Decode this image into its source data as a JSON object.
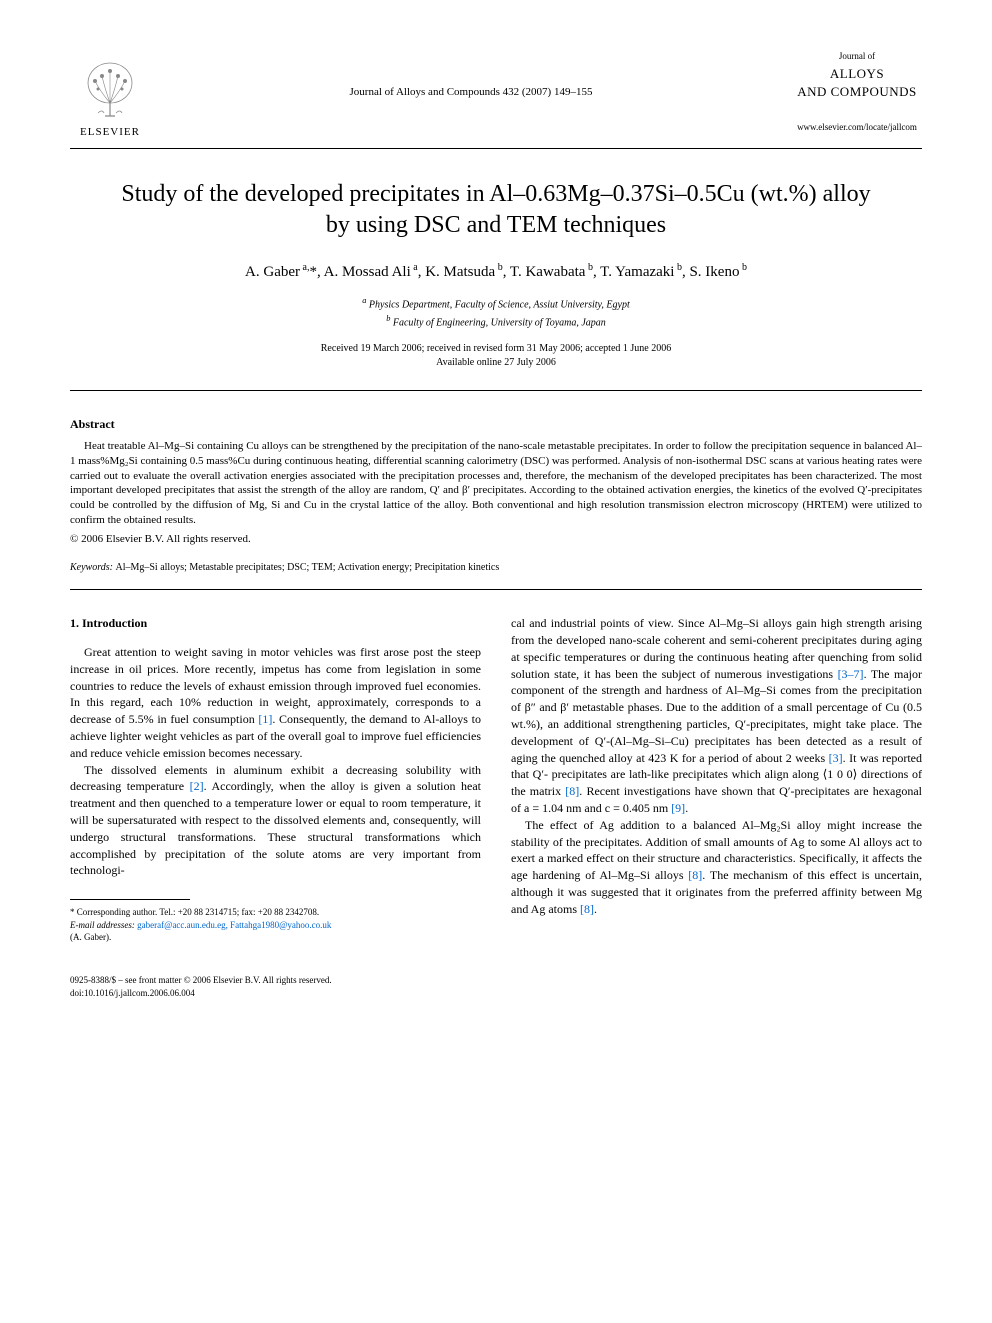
{
  "header": {
    "publisher": "ELSEVIER",
    "journal_ref": "Journal of Alloys and Compounds 432 (2007) 149–155",
    "journal_logo_pretitle": "Journal of",
    "journal_logo_title": "ALLOYS\nAND COMPOUNDS",
    "journal_url": "www.elsevier.com/locate/jallcom"
  },
  "title": "Study of the developed precipitates in Al–0.63Mg–0.37Si–0.5Cu (wt.%) alloy by using DSC and TEM techniques",
  "authors_html": "A. Gaber<sup> a,</sup>*, A. Mossad Ali<sup> a</sup>, K. Matsuda<sup> b</sup>, T. Kawabata<sup> b</sup>, T. Yamazaki<sup> b</sup>, S. Ikeno<sup> b</sup>",
  "affiliations": {
    "a": "Physics Department, Faculty of Science, Assiut University, Egypt",
    "b": "Faculty of Engineering, University of Toyama, Japan"
  },
  "dates": {
    "received": "Received 19 March 2006; received in revised form 31 May 2006; accepted 1 June 2006",
    "online": "Available online 27 July 2006"
  },
  "abstract": {
    "heading": "Abstract",
    "text": "Heat treatable Al–Mg–Si containing Cu alloys can be strengthened by the precipitation of the nano-scale metastable precipitates. In order to follow the precipitation sequence in balanced Al–1 mass%Mg₂Si containing 0.5 mass%Cu during continuous heating, differential scanning calorimetry (DSC) was performed. Analysis of non-isothermal DSC scans at various heating rates were carried out to evaluate the overall activation energies associated with the precipitation processes and, therefore, the mechanism of the developed precipitates has been characterized. The most important developed precipitates that assist the strength of the alloy are random, Q′ and β′ precipitates. According to the obtained activation energies, the kinetics of the evolved Q′-precipitates could be controlled by the diffusion of Mg, Si and Cu in the crystal lattice of the alloy. Both conventional and high resolution transmission electron microscopy (HRTEM) were utilized to confirm the obtained results.",
    "copyright": "© 2006 Elsevier B.V. All rights reserved."
  },
  "keywords": {
    "label": "Keywords:",
    "text": "Al–Mg–Si alloys; Metastable precipitates; DSC; TEM; Activation energy; Precipitation kinetics"
  },
  "body": {
    "section_heading": "1. Introduction",
    "col1_p1": "Great attention to weight saving in motor vehicles was first arose post the steep increase in oil prices. More recently, impetus has come from legislation in some countries to reduce the levels of exhaust emission through improved fuel economies. In this regard, each 10% reduction in weight, approximately, corresponds to a decrease of 5.5% in fuel consumption ",
    "col1_p1_ref": "[1]",
    "col1_p1_cont": ". Consequently, the demand to Al-alloys to achieve lighter weight vehicles as part of the overall goal to improve fuel efficiencies and reduce vehicle emission becomes necessary.",
    "col1_p2": "The dissolved elements in aluminum exhibit a decreasing solubility with decreasing temperature ",
    "col1_p2_ref": "[2]",
    "col1_p2_cont": ". Accordingly, when the alloy is given a solution heat treatment and then quenched to a temperature lower or equal to room temperature, it will be supersaturated with respect to the dissolved elements and, consequently, will undergo structural transformations. These structural transformations which accomplished by precipitation of the solute atoms are very important from technologi-",
    "col2_p1": "cal and industrial points of view. Since Al–Mg–Si alloys gain high strength arising from the developed nano-scale coherent and semi-coherent precipitates during aging at specific temperatures or during the continuous heating after quenching from solid solution state, it has been the subject of numerous investigations ",
    "col2_p1_ref": "[3–7]",
    "col2_p1_cont": ". The major component of the strength and hardness of Al–Mg–Si comes from the precipitation of β″ and β′ metastable phases. Due to the addition of a small percentage of Cu (0.5 wt.%), an additional strengthening particles, Q′-precipitates, might take place. The development of Q′-(Al–Mg–Si–Cu) precipitates has been detected as a result of aging the quenched alloy at 423 K for a period of about 2 weeks ",
    "col2_p1_ref2": "[3]",
    "col2_p1_cont2": ". It was reported that Q′- precipitates are lath-like precipitates which align along ⟨1 0 0⟩ directions of the matrix ",
    "col2_p1_ref3": "[8]",
    "col2_p1_cont3": ". Recent investigations have shown that Q′-precipitates are hexagonal of a = 1.04 nm and c = 0.405 nm ",
    "col2_p1_ref4": "[9]",
    "col2_p1_cont4": ".",
    "col2_p2": "The effect of Ag addition to a balanced Al–Mg₂Si alloy might increase the stability of the precipitates. Addition of small amounts of Ag to some Al alloys act to exert a marked effect on their structure and characteristics. Specifically, it affects the age hardening of Al–Mg–Si alloys ",
    "col2_p2_ref": "[8]",
    "col2_p2_cont": ". The mechanism of this effect is uncertain, although it was suggested that it originates from the preferred affinity between Mg and Ag atoms ",
    "col2_p2_ref2": "[8]",
    "col2_p2_cont2": "."
  },
  "footnote": {
    "corresponding": "* Corresponding author. Tel.: +20 88 2314715; fax: +20 88 2342708.",
    "email_label": "E-mail addresses:",
    "emails": "gaberaf@acc.aun.edu.eg, Fattahga1980@yahoo.co.uk",
    "email_author": "(A. Gaber)."
  },
  "footer": {
    "issn": "0925-8388/$ – see front matter © 2006 Elsevier B.V. All rights reserved.",
    "doi": "doi:10.1016/j.jallcom.2006.06.004"
  },
  "colors": {
    "text": "#000000",
    "background": "#ffffff",
    "link": "#0066cc",
    "logo_orange": "#e67817"
  }
}
